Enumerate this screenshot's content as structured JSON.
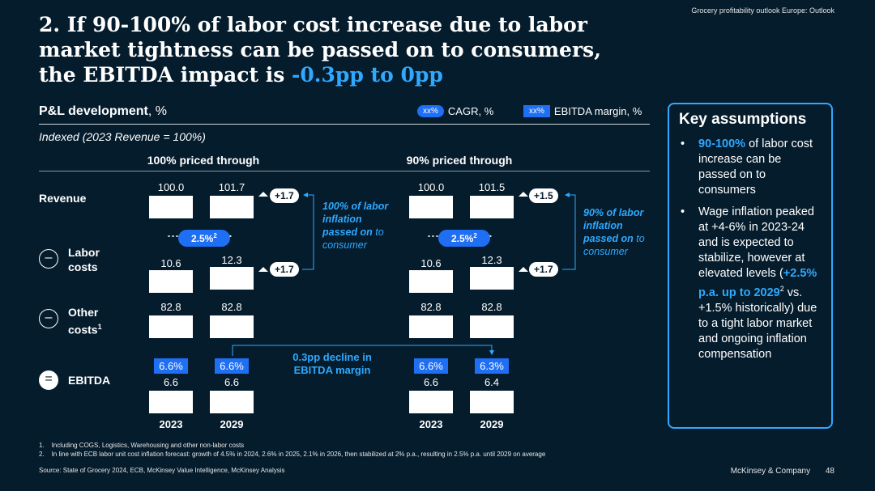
{
  "header": {
    "topright": "Grocery profitability outlook Europe: Outlook",
    "title_main": "2. If 90-100% of labor cost increase due to labor market tightness can be passed on to consumers, the EBITDA impact is ",
    "title_accent": "-0.3pp to 0pp"
  },
  "section": {
    "title_bold": "P&L development",
    "title_rest": ", %",
    "subtitle": "Indexed (2023 Revenue = 100%)",
    "legend": [
      {
        "marker": "xx%",
        "label": "CAGR, %"
      },
      {
        "marker": "xx%",
        "label": "EBITDA margin, %"
      }
    ]
  },
  "rows": {
    "revenue": "Revenue",
    "labor": "Labor costs",
    "other": "Other costs",
    "other_sup": "1",
    "ebitda": "EBITDA",
    "minus": "–",
    "equals": "="
  },
  "chart_data": {
    "type": "bar",
    "categories": [
      "2023",
      "2029"
    ],
    "groups": [
      {
        "title": "100% priced through",
        "revenue": [
          100.0,
          101.7
        ],
        "revenue_delta": "+1.7",
        "labor": [
          10.6,
          12.3
        ],
        "labor_delta": "+1.7",
        "labor_cagr": "2.5%",
        "labor_cagr_sup": "2",
        "other": [
          82.8,
          82.8
        ],
        "ebitda": [
          6.6,
          6.6
        ],
        "ebitda_margin": [
          "6.6%",
          "6.6%"
        ],
        "note_bold": "100% of labor inflation passed on",
        "note_rest": " to consumer"
      },
      {
        "title": "90% priced through",
        "revenue": [
          100.0,
          101.5
        ],
        "revenue_delta": "+1.5",
        "labor": [
          10.6,
          12.3
        ],
        "labor_delta": "+1.7",
        "labor_cagr": "2.5%",
        "labor_cagr_sup": "2",
        "other": [
          82.8,
          82.8
        ],
        "ebitda": [
          6.6,
          6.4
        ],
        "ebitda_margin": [
          "6.6%",
          "6.3%"
        ],
        "note_bold": "90% of labor inflation passed on",
        "note_rest": " to consumer"
      }
    ],
    "decline_note": "0.3pp decline in EBITDA margin"
  },
  "panel": {
    "title": "Key assumptions",
    "b1_hl": "90-100%",
    "b1_rest": " of labor cost increase can be passed on to consumers",
    "b2_a": "Wage inflation peaked at +4-6% in 2023-24 and is expected to stabilize, however at elevated levels (",
    "b2_hl": "+2.5% p.a. up to 2029",
    "b2_sup": "2",
    "b2_rest": " vs. +1.5% historically) due to a tight labor market and ongoing inflation compensation"
  },
  "footnotes": [
    "1.    Including COGS, Logistics, Warehousing and other non-labor costs",
    "2.    In line with ECB labor unit cost inflation forecast: growth of 4.5% in 2024, 2.6% in 2025, 2.1% in 2026, then stabilized at 2% p.a., resulting in 2.5% p.a. until 2029 on average"
  ],
  "source": "Source: State of Grocery 2024, ECB, McKinsey Value Intelligence, McKinsey Analysis",
  "footer": {
    "brand": "McKinsey & Company",
    "page": "48"
  }
}
